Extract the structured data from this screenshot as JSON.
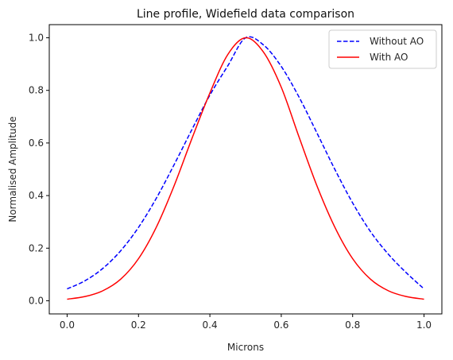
{
  "chart_data": {
    "type": "line",
    "title": "Line profile, Widefield data comparison",
    "xlabel": "Microns",
    "ylabel": "Normalised Amplitude",
    "xlim": [
      -0.05,
      1.05
    ],
    "ylim": [
      -0.05,
      1.05
    ],
    "xticks": [
      0.0,
      0.2,
      0.4,
      0.6,
      0.8,
      1.0
    ],
    "xtick_labels": [
      "0.0",
      "0.2",
      "0.4",
      "0.6",
      "0.8",
      "1.0"
    ],
    "yticks": [
      0.0,
      0.2,
      0.4,
      0.6,
      0.8,
      1.0
    ],
    "ytick_labels": [
      "0.0",
      "0.2",
      "0.4",
      "0.6",
      "0.8",
      "1.0"
    ],
    "grid": false,
    "legend_position": "top-right",
    "series": [
      {
        "name": "Without AO",
        "color": "#0000ff",
        "style": "dashed",
        "x": [
          0.0,
          0.05,
          0.1,
          0.15,
          0.2,
          0.25,
          0.3,
          0.35,
          0.4,
          0.45,
          0.5,
          0.55,
          0.6,
          0.65,
          0.7,
          0.75,
          0.8,
          0.85,
          0.9,
          0.95,
          1.0
        ],
        "y": [
          0.045,
          0.076,
          0.123,
          0.19,
          0.279,
          0.39,
          0.518,
          0.652,
          0.782,
          0.893,
          1.0,
          0.973,
          0.891,
          0.774,
          0.638,
          0.5,
          0.372,
          0.263,
          0.177,
          0.107,
          0.045
        ]
      },
      {
        "name": "With AO",
        "color": "#ff0000",
        "style": "solid",
        "x": [
          0.0,
          0.05,
          0.1,
          0.15,
          0.2,
          0.25,
          0.3,
          0.35,
          0.4,
          0.45,
          0.5,
          0.55,
          0.6,
          0.65,
          0.7,
          0.75,
          0.8,
          0.85,
          0.9,
          0.95,
          1.0
        ],
        "y": [
          0.006,
          0.016,
          0.038,
          0.082,
          0.16,
          0.28,
          0.438,
          0.618,
          0.79,
          0.936,
          1.0,
          0.946,
          0.812,
          0.622,
          0.437,
          0.28,
          0.16,
          0.082,
          0.038,
          0.016,
          0.006
        ]
      }
    ]
  }
}
